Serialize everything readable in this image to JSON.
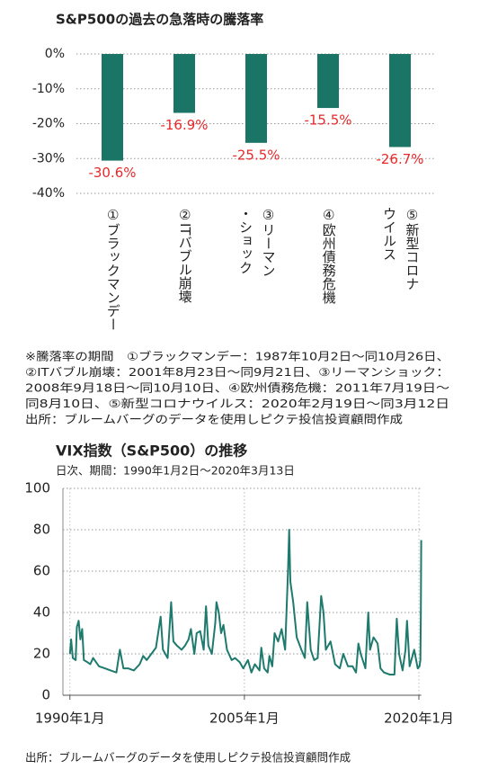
{
  "chart_data": [
    {
      "type": "bar",
      "title": "S&P500の過去の急落時の騰落率",
      "categories": [
        "①ブラックマンデー",
        "②ITバブル崩壊",
        "③リーマン\n・ショック",
        "④欧州債務危機",
        "⑤新型コロナ\nウイルス"
      ],
      "values": [
        -30.6,
        -16.9,
        -25.5,
        -15.5,
        -26.7
      ],
      "value_labels": [
        "-30.6%",
        "-16.9%",
        "-25.5%",
        "-15.5%",
        "-26.7%"
      ],
      "color": "#1a7567",
      "label_color": "#e8282b",
      "ylim": [
        -40,
        0
      ],
      "yticks": [
        {
          "value": 0,
          "label": "0%"
        },
        {
          "value": -10,
          "label": "-10%"
        },
        {
          "value": -20,
          "label": "-20%"
        },
        {
          "value": -30,
          "label": "-30%"
        },
        {
          "value": -40,
          "label": "-40%"
        }
      ],
      "grid": true,
      "notes": [
        "※騰落率の期間　①ブラックマンデー：1987年10月2日～同10月26日、",
        "②ITバブル崩壊：2001年8月23日～同9月21日、③リーマンショック：",
        "2008年9月18日～同10月10日、④欧州債務危機：2011年7月19日～",
        "同8月10日、⑤新型コロナウイルス：2020年2月19日～同3月12日",
        "出所：ブルームバーグのデータを使用しピクテ投信投資顧問作成"
      ]
    },
    {
      "type": "line",
      "title": "VIX指数（S&P500）の推移",
      "subtitle": "日次、期間：1990年1月2日～2020年3月13日",
      "color": "#1f7a6e",
      "x": [
        1990.0,
        1990.1,
        1990.25,
        1990.5,
        1990.6,
        1990.75,
        1990.9,
        1991.05,
        1991.2,
        1991.5,
        1991.75,
        1992.0,
        1992.5,
        1993.0,
        1993.5,
        1994.0,
        1994.3,
        1994.6,
        1995.0,
        1995.5,
        1996.0,
        1996.3,
        1996.6,
        1997.0,
        1997.4,
        1997.8,
        1998.0,
        1998.4,
        1998.7,
        1998.9,
        1999.2,
        1999.6,
        1999.9,
        2000.2,
        2000.4,
        2000.7,
        2000.9,
        2001.2,
        2001.5,
        2001.7,
        2001.9,
        2002.2,
        2002.5,
        2002.6,
        2002.8,
        2003.0,
        2003.2,
        2003.5,
        2003.9,
        2004.2,
        2004.6,
        2004.9,
        2005.3,
        2005.6,
        2005.9,
        2006.3,
        2006.45,
        2006.7,
        2007.0,
        2007.15,
        2007.4,
        2007.6,
        2007.9,
        2008.2,
        2008.5,
        2008.75,
        2008.85,
        2008.95,
        2009.2,
        2009.5,
        2009.9,
        2010.2,
        2010.4,
        2010.7,
        2011.0,
        2011.3,
        2011.6,
        2011.8,
        2012.0,
        2012.4,
        2012.8,
        2013.2,
        2013.5,
        2013.9,
        2014.3,
        2014.6,
        2014.8,
        2015.0,
        2015.4,
        2015.65,
        2015.8,
        2016.1,
        2016.45,
        2016.7,
        2017.0,
        2017.5,
        2017.9,
        2018.1,
        2018.3,
        2018.6,
        2018.85,
        2018.98,
        2019.2,
        2019.6,
        2019.9,
        2020.05,
        2020.13,
        2020.17,
        2020.2
      ],
      "values": [
        20,
        27,
        18,
        17,
        33,
        36,
        27,
        32,
        17,
        16,
        15,
        18,
        14,
        13,
        12,
        11,
        22,
        13,
        13,
        12,
        15,
        19,
        17,
        20,
        23,
        38,
        22,
        18,
        45,
        26,
        24,
        22,
        24,
        27,
        32,
        20,
        30,
        31,
        22,
        43,
        24,
        20,
        35,
        45,
        40,
        30,
        34,
        22,
        17,
        18,
        16,
        13,
        17,
        11,
        15,
        12,
        23,
        13,
        11,
        19,
        14,
        30,
        26,
        32,
        22,
        60,
        80,
        55,
        45,
        28,
        22,
        18,
        45,
        22,
        17,
        18,
        48,
        40,
        22,
        26,
        15,
        13,
        20,
        14,
        14,
        11,
        25,
        20,
        13,
        40,
        22,
        28,
        25,
        13,
        11,
        10,
        10,
        37,
        20,
        12,
        22,
        36,
        14,
        22,
        13,
        14,
        17,
        40,
        75
      ],
      "xlim": [
        1989.4,
        2020.2
      ],
      "xticks": [
        {
          "value": 1990,
          "label": "1990年1月"
        },
        {
          "value": 2005,
          "label": "2005年1月"
        },
        {
          "value": 2020,
          "label": "2020年1月"
        }
      ],
      "ylim": [
        0,
        100
      ],
      "yticks": [
        0,
        20,
        40,
        60,
        80,
        100
      ],
      "grid": true,
      "source": "出所：ブルームバーグのデータを使用しピクテ投信投資顧問作成"
    }
  ]
}
